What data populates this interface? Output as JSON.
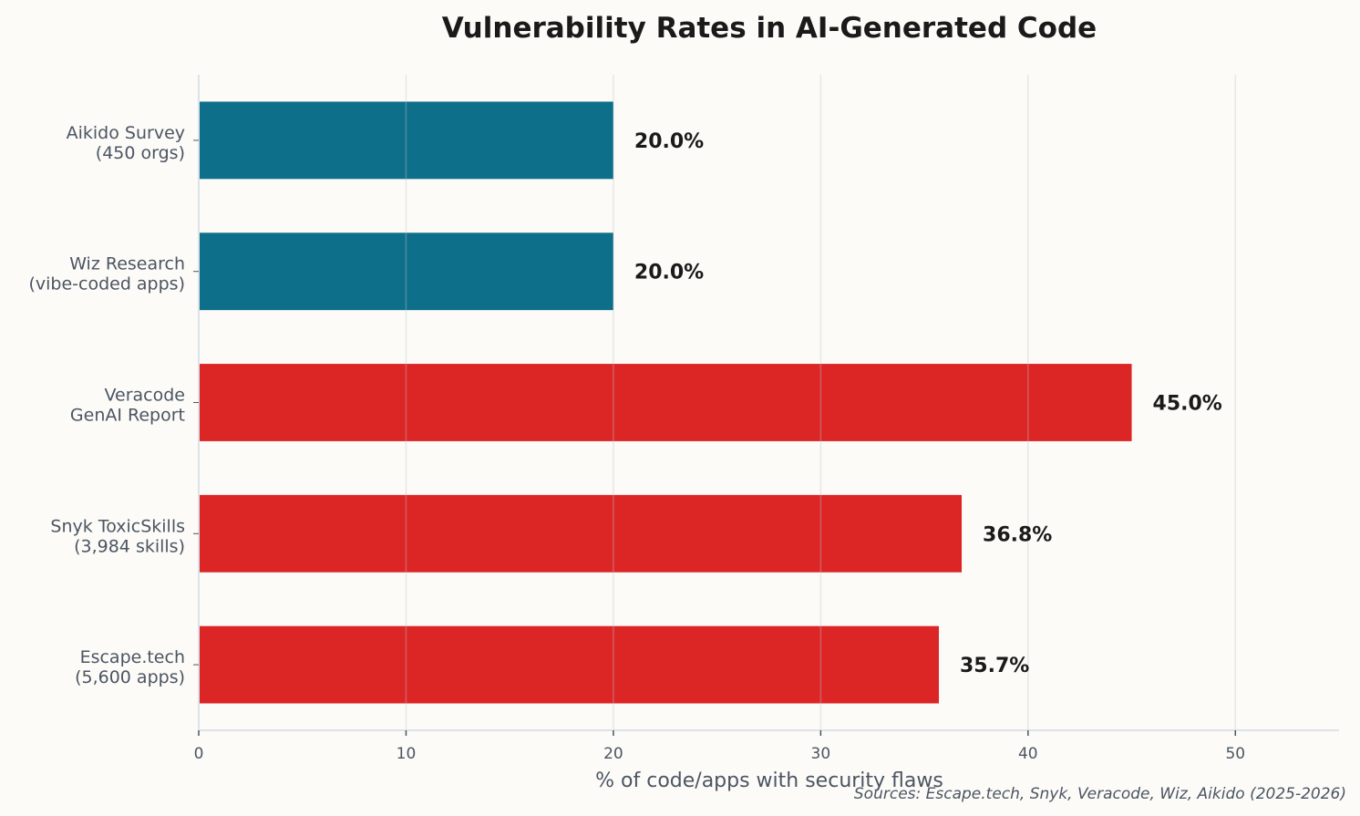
{
  "chart_data": {
    "type": "bar",
    "orientation": "horizontal",
    "title": "Vulnerability Rates in AI-Generated Code",
    "xlabel": "% of code/apps with security flaws",
    "ylabel": "",
    "xlim": [
      0,
      55
    ],
    "xticks": [
      "0",
      "10",
      "20",
      "30",
      "40",
      "50"
    ],
    "grid": "vertical",
    "categories": [
      [
        "Aikido Survey",
        "(450 orgs)"
      ],
      [
        "Wiz Research",
        "(vibe-coded apps)"
      ],
      [
        "Veracode",
        "GenAI Report"
      ],
      [
        "Snyk ToxicSkills",
        "(3,984 skills)"
      ],
      [
        "Escape.tech",
        "(5,600 apps)"
      ]
    ],
    "values": [
      20.0,
      20.0,
      45.0,
      36.8,
      35.7
    ],
    "value_labels": [
      "20.0%",
      "20.0%",
      "45.0%",
      "36.8%",
      "35.7%"
    ],
    "bar_colors": [
      "#0e6f8a",
      "#0e6f8a",
      "#dc2626",
      "#dc2626",
      "#dc2626"
    ],
    "source_note": "Sources: Escape.tech, Snyk, Veracode, Wiz, Aikido (2025-2026)"
  }
}
